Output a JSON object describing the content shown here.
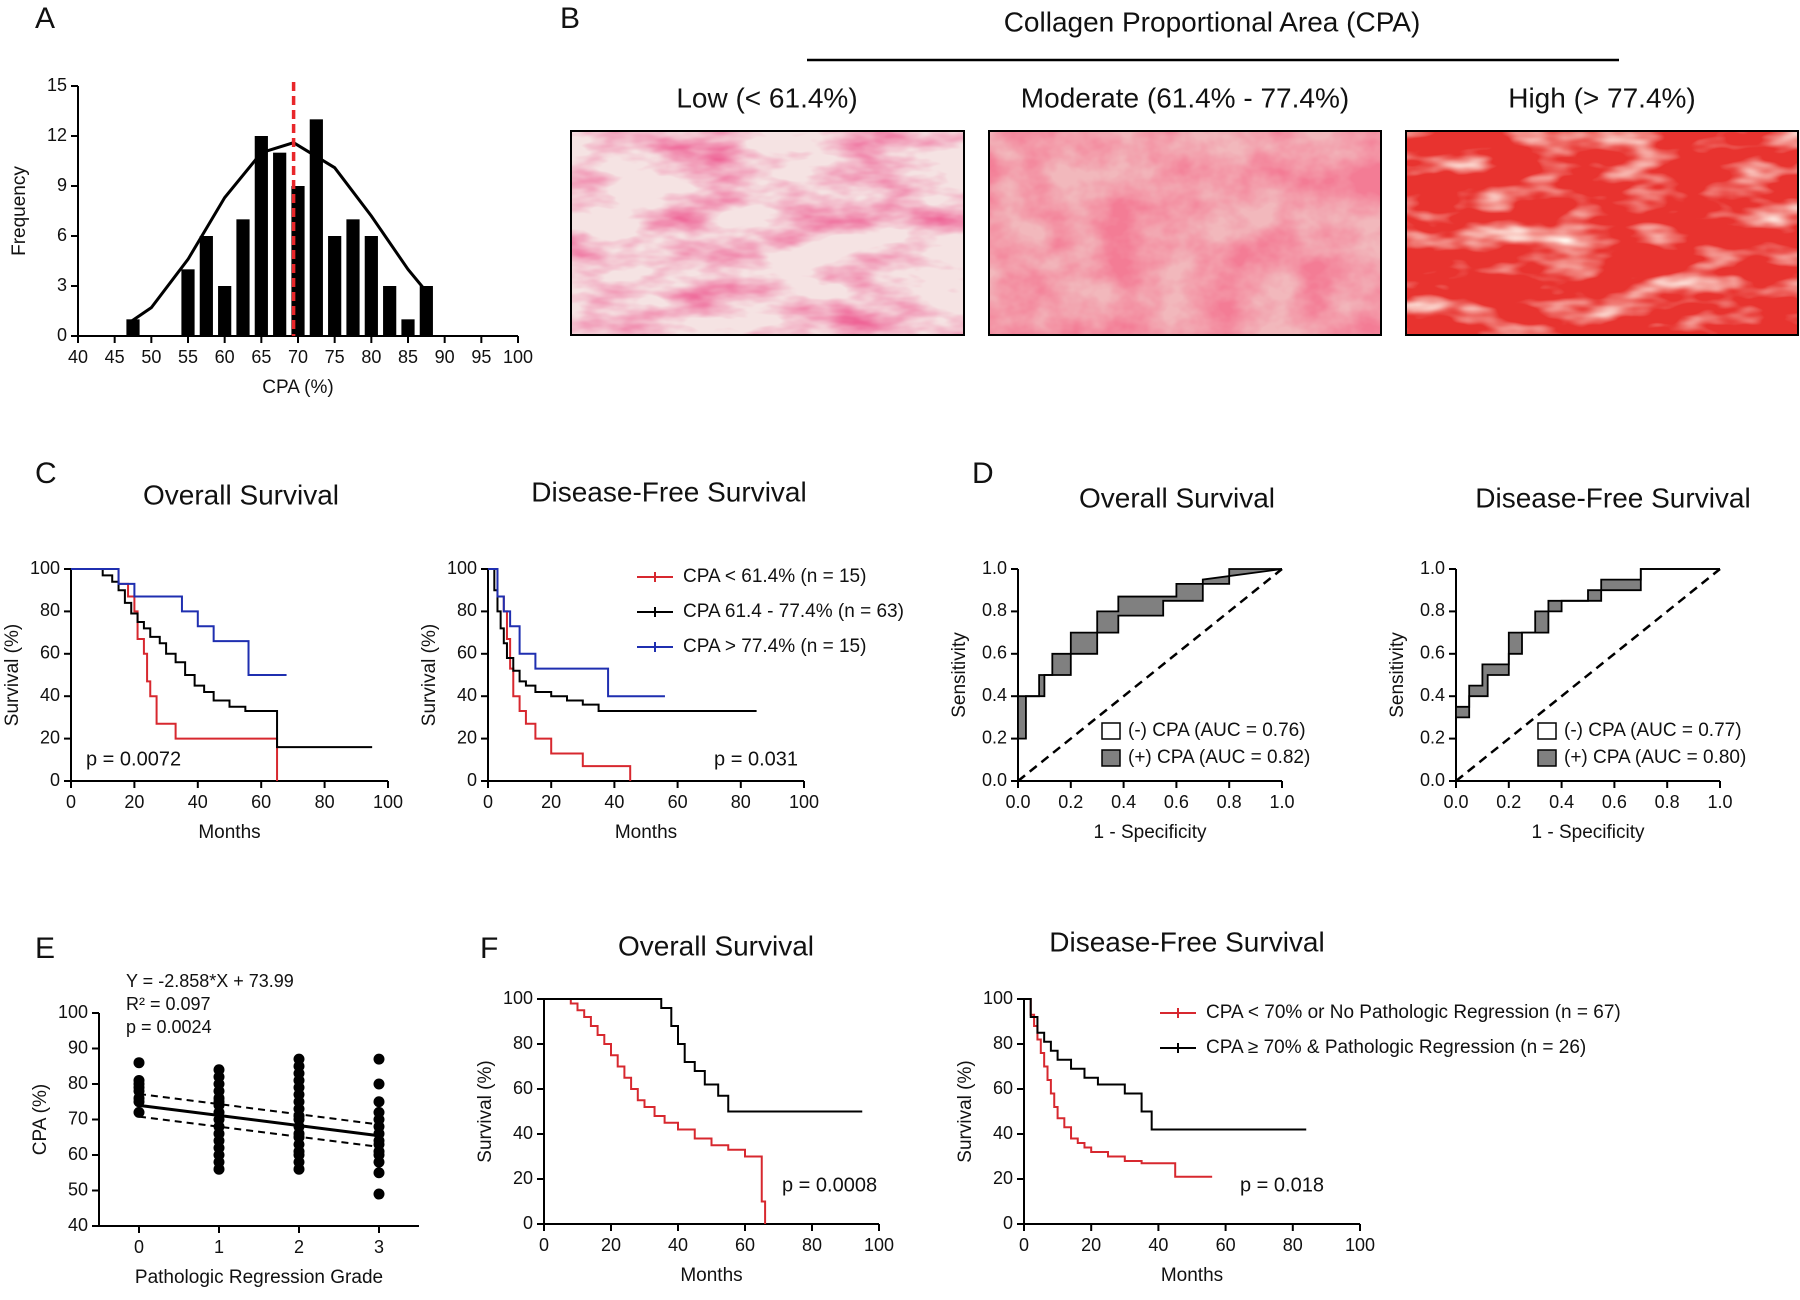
{
  "image_panel": {
    "panel_label": "B",
    "title": "Collagen Proportional Area (CPA)",
    "images": [
      {
        "label": "Low (< 61.4%)"
      },
      {
        "label": "Moderate (61.4% - 77.4%)"
      },
      {
        "label": "High (> 77.4%)"
      }
    ]
  },
  "chart_data": [
    {
      "type": "histogram",
      "panel_label": "A",
      "xlabel": "CPA (%)",
      "ylabel": "Frequency",
      "bins": [
        46.25,
        48.75,
        51.25,
        53.75,
        56.25,
        58.75,
        61.25,
        63.75,
        66.25,
        68.75,
        71.25,
        73.75,
        76.25,
        78.75,
        81.25,
        83.75,
        86.25,
        88.75
      ],
      "values": [
        1,
        0,
        0,
        4,
        6,
        3,
        7,
        12,
        11,
        9,
        13,
        6,
        7,
        6,
        3,
        1,
        3
      ],
      "color": "#000000",
      "fit": {
        "x": [
          47,
          50,
          55,
          60,
          65,
          69.4,
          75,
          80,
          85,
          88
        ],
        "values": [
          0.8,
          1.7,
          4.6,
          8.3,
          11,
          11.6,
          10.1,
          7.2,
          4,
          2.4
        ]
      },
      "mean_line": 69.4,
      "mean_color": "#e8262a",
      "xlim": [
        40,
        100
      ],
      "xticks": [
        40,
        45,
        50,
        55,
        60,
        65,
        70,
        75,
        80,
        85,
        90,
        95,
        100
      ],
      "ylim": [
        0,
        15
      ],
      "yticks": [
        0,
        3,
        6,
        9,
        12,
        15
      ]
    },
    {
      "type": "line",
      "step": true,
      "panel_label": "C",
      "title": "Overall Survival",
      "xlabel": "Months",
      "ylabel": "Survival (%)",
      "annotation": "p = 0.0072",
      "xlim": [
        0,
        100
      ],
      "xticks": [
        0,
        20,
        40,
        60,
        80,
        100
      ],
      "ylim": [
        0,
        100
      ],
      "yticks": [
        0,
        20,
        40,
        60,
        80,
        100
      ],
      "series": [
        {
          "color": "#d7282f",
          "x": [
            0,
            15,
            18,
            20,
            21,
            23,
            24,
            25,
            27,
            33,
            65
          ],
          "values": [
            100,
            93,
            87,
            80,
            67,
            60,
            47,
            40,
            27,
            20,
            0
          ]
        },
        {
          "color": "#000000",
          "x": [
            0,
            10,
            13,
            15,
            17,
            19,
            21,
            23,
            25,
            28,
            30,
            33,
            36,
            39,
            42,
            45,
            50,
            55,
            60,
            65,
            95
          ],
          "values": [
            100,
            97,
            94,
            90,
            84,
            79,
            75,
            72,
            68,
            65,
            60,
            56,
            50,
            45,
            42,
            38,
            35,
            33,
            33,
            16,
            16
          ]
        },
        {
          "color": "#1f2fb0",
          "x": [
            0,
            15,
            20,
            35,
            40,
            45,
            56,
            68
          ],
          "values": [
            100,
            93,
            87,
            80,
            73,
            66,
            50,
            50
          ]
        }
      ]
    },
    {
      "type": "line",
      "step": true,
      "title": "Disease-Free Survival",
      "xlabel": "Months",
      "ylabel": "Survival (%)",
      "annotation": "p = 0.031",
      "xlim": [
        0,
        100
      ],
      "xticks": [
        0,
        20,
        40,
        60,
        80,
        100
      ],
      "ylim": [
        0,
        100
      ],
      "yticks": [
        0,
        20,
        40,
        60,
        80,
        100
      ],
      "series": [
        {
          "name": "CPA < 61.4% (n = 15)",
          "color": "#d7282f",
          "x": [
            0,
            3,
            5,
            6,
            7,
            8,
            10,
            12,
            15,
            20,
            30,
            45
          ],
          "values": [
            100,
            87,
            80,
            67,
            53,
            40,
            33,
            27,
            20,
            13,
            7,
            0
          ]
        },
        {
          "name": "CPA 61.4 - 77.4% (n = 63)",
          "color": "#000000",
          "x": [
            0,
            2,
            3,
            4,
            5,
            6,
            8,
            10,
            12,
            15,
            20,
            25,
            30,
            35,
            85
          ],
          "values": [
            100,
            90,
            80,
            72,
            65,
            58,
            52,
            47,
            45,
            42,
            40,
            38,
            36,
            33,
            33
          ]
        },
        {
          "name": "CPA > 77.4% (n = 15)",
          "color": "#1f2fb0",
          "x": [
            0,
            3,
            5,
            7,
            10,
            15,
            38,
            56
          ],
          "values": [
            100,
            87,
            80,
            73,
            60,
            53,
            40,
            40
          ]
        }
      ]
    },
    {
      "type": "roc",
      "panel_label": "D",
      "title": "Overall Survival",
      "xlabel": "1 - Specificity",
      "ylabel": "Sensitivity",
      "xlim": [
        0,
        1
      ],
      "xticks": [
        {
          "value": 0,
          "label": "0.0"
        },
        0.2,
        0.4,
        0.6,
        0.8,
        {
          "value": 1,
          "label": "1.0"
        }
      ],
      "ylim": [
        0,
        1
      ],
      "yticks": [
        {
          "value": 0,
          "label": "0.0"
        },
        0.2,
        0.4,
        0.6,
        0.8,
        {
          "value": 1,
          "label": "1.0"
        }
      ],
      "series": [
        {
          "name": "(-) CPA (AUC = 0.76)",
          "color": "#ffffff",
          "x": [
            0,
            0,
            0.1,
            0.1,
            0.2,
            0.2,
            0.3,
            0.3,
            0.38,
            0.38,
            0.55,
            0.55,
            0.7,
            0.7,
            1
          ],
          "values": [
            0,
            0.4,
            0.4,
            0.5,
            0.5,
            0.6,
            0.6,
            0.7,
            0.7,
            0.78,
            0.78,
            0.85,
            0.85,
            0.95,
            1
          ]
        },
        {
          "name": "(+) CPA (AUC = 0.82)",
          "color": "#808080",
          "x": [
            0,
            0,
            0.03,
            0.03,
            0.08,
            0.08,
            0.13,
            0.13,
            0.2,
            0.2,
            0.3,
            0.3,
            0.38,
            0.38,
            0.6,
            0.6,
            0.8,
            0.8,
            1
          ],
          "values": [
            0,
            0.2,
            0.2,
            0.4,
            0.4,
            0.5,
            0.5,
            0.6,
            0.6,
            0.7,
            0.7,
            0.8,
            0.8,
            0.87,
            0.87,
            0.93,
            0.93,
            1,
            1
          ]
        }
      ]
    },
    {
      "type": "roc",
      "title": "Disease-Free Survival",
      "xlabel": "1 - Specificity",
      "ylabel": "Sensitivity",
      "xlim": [
        0,
        1
      ],
      "xticks": [
        {
          "value": 0,
          "label": "0.0"
        },
        0.2,
        0.4,
        0.6,
        0.8,
        {
          "value": 1,
          "label": "1.0"
        }
      ],
      "ylim": [
        0,
        1
      ],
      "yticks": [
        {
          "value": 0,
          "label": "0.0"
        },
        0.2,
        0.4,
        0.6,
        0.8,
        {
          "value": 1,
          "label": "1.0"
        }
      ],
      "series": [
        {
          "name": "(-) CPA (AUC = 0.77)",
          "color": "#ffffff",
          "x": [
            0,
            0,
            0.05,
            0.05,
            0.1,
            0.1,
            0.2,
            0.2,
            0.3,
            0.3,
            0.4,
            0.4,
            0.55,
            0.55,
            0.7,
            0.7,
            1
          ],
          "values": [
            0,
            0.35,
            0.35,
            0.45,
            0.45,
            0.55,
            0.55,
            0.7,
            0.7,
            0.8,
            0.8,
            0.85,
            0.85,
            0.95,
            0.95,
            1,
            1
          ]
        },
        {
          "name": "(+) CPA (AUC = 0.80)",
          "color": "#808080",
          "x": [
            0,
            0,
            0.05,
            0.05,
            0.12,
            0.12,
            0.2,
            0.2,
            0.25,
            0.25,
            0.35,
            0.35,
            0.5,
            0.5,
            0.7,
            0.7,
            1
          ],
          "values": [
            0,
            0.3,
            0.3,
            0.4,
            0.4,
            0.5,
            0.5,
            0.6,
            0.6,
            0.7,
            0.7,
            0.85,
            0.85,
            0.9,
            0.9,
            1,
            1
          ]
        }
      ]
    },
    {
      "type": "scatter",
      "panel_label": "E",
      "xlabel": "Pathologic Regression Grade",
      "ylabel": "CPA (%)",
      "annotations": [
        "Y = -2.858*X + 73.99",
        "R² = 0.097",
        "p = 0.0024"
      ],
      "xlim": [
        -0.5,
        3.5
      ],
      "xticks": [
        0,
        1,
        2,
        3
      ],
      "ylim": [
        40,
        100
      ],
      "yticks": [
        40,
        50,
        60,
        70,
        80,
        90,
        100
      ],
      "color": "#000000",
      "x": [
        0,
        0,
        0,
        0,
        0,
        0,
        0,
        0,
        1,
        1,
        1,
        1,
        1,
        1,
        1,
        1,
        1,
        1,
        1,
        1,
        1,
        1,
        1,
        1,
        2,
        2,
        2,
        2,
        2,
        2,
        2,
        2,
        2,
        2,
        2,
        2,
        2,
        2,
        2,
        2,
        2,
        2,
        3,
        3,
        3,
        3,
        3,
        3,
        3,
        3,
        3,
        3,
        3,
        3,
        3,
        3
      ],
      "values": [
        86,
        81,
        80,
        79,
        78,
        76,
        75,
        72,
        84,
        82,
        80,
        78,
        76,
        75,
        74,
        72,
        70,
        68,
        66,
        64,
        62,
        60,
        58,
        56,
        87,
        85,
        83,
        81,
        79,
        77,
        75,
        73,
        71,
        70,
        68,
        66,
        65,
        63,
        61,
        60,
        58,
        56,
        87,
        80,
        75,
        72,
        70,
        68,
        66,
        64,
        63,
        61,
        60,
        58,
        55,
        49
      ],
      "fit": {
        "x": [
          0,
          3
        ],
        "values": [
          73.99,
          65.416
        ]
      },
      "ci_upper": {
        "x": [
          0,
          3
        ],
        "values": [
          77.2,
          68.6
        ]
      },
      "ci_lower": {
        "x": [
          0,
          3
        ],
        "values": [
          70.8,
          62.3
        ]
      }
    },
    {
      "type": "line",
      "step": true,
      "panel_label": "F",
      "title": "Overall Survival",
      "xlabel": "Months",
      "ylabel": "Survival (%)",
      "annotation": "p = 0.0008",
      "xlim": [
        0,
        100
      ],
      "xticks": [
        0,
        20,
        40,
        60,
        80,
        100
      ],
      "ylim": [
        0,
        100
      ],
      "yticks": [
        0,
        20,
        40,
        60,
        80,
        100
      ],
      "series": [
        {
          "color": "#d7282f",
          "x": [
            0,
            8,
            10,
            12,
            14,
            16,
            18,
            20,
            22,
            24,
            26,
            28,
            30,
            33,
            36,
            40,
            45,
            50,
            55,
            60,
            65,
            66
          ],
          "values": [
            100,
            98,
            95,
            92,
            88,
            84,
            80,
            75,
            70,
            65,
            60,
            55,
            52,
            48,
            45,
            42,
            38,
            35,
            33,
            30,
            10,
            0
          ]
        },
        {
          "color": "#000000",
          "x": [
            0,
            35,
            38,
            40,
            42,
            45,
            48,
            52,
            55,
            95
          ],
          "values": [
            100,
            96,
            88,
            80,
            72,
            68,
            62,
            57,
            50,
            50
          ]
        }
      ]
    },
    {
      "type": "line",
      "step": true,
      "title": "Disease-Free Survival",
      "xlabel": "Months",
      "ylabel": "Survival (%)",
      "annotation": "p = 0.018",
      "xlim": [
        0,
        100
      ],
      "xticks": [
        0,
        20,
        40,
        60,
        80,
        100
      ],
      "ylim": [
        0,
        100
      ],
      "yticks": [
        0,
        20,
        40,
        60,
        80,
        100
      ],
      "series": [
        {
          "name": "CPA < 70% or No Pathologic Regression (n = 67)",
          "color": "#d7282f",
          "x": [
            0,
            2,
            3,
            4,
            5,
            6,
            7,
            8,
            9,
            10,
            12,
            14,
            16,
            18,
            20,
            25,
            30,
            35,
            45,
            56
          ],
          "values": [
            100,
            93,
            88,
            82,
            76,
            70,
            64,
            58,
            52,
            47,
            43,
            38,
            36,
            34,
            32,
            30,
            28,
            27,
            21,
            21
          ]
        },
        {
          "name": "CPA ≥ 70% & Pathologic Regression (n = 26)",
          "color": "#000000",
          "x": [
            0,
            2,
            4,
            6,
            8,
            10,
            14,
            18,
            22,
            26,
            30,
            35,
            38,
            84
          ],
          "values": [
            100,
            92,
            85,
            81,
            77,
            73,
            69,
            65,
            62,
            62,
            58,
            50,
            42,
            42
          ]
        }
      ]
    }
  ]
}
